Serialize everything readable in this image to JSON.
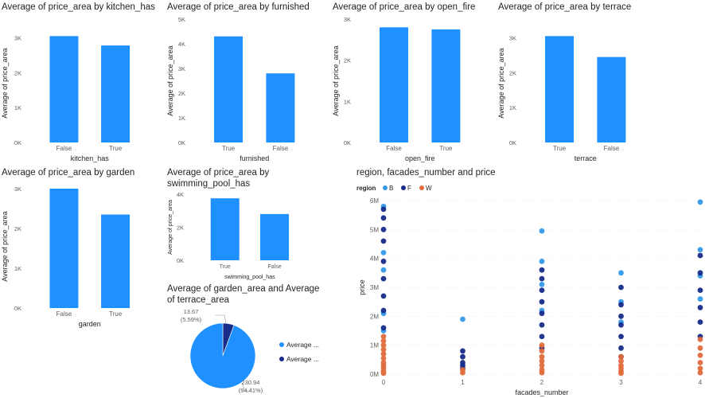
{
  "colors": {
    "bar": "#1e90ff",
    "axis_text": "#605e5c",
    "grid": "#e6e6e6",
    "B": "#3599e8",
    "F": "#162b8a",
    "W": "#e06c3c",
    "pie_main": "#1e90ff",
    "pie_small": "#1a2c8a"
  },
  "chart_data": [
    {
      "type": "bar",
      "title": "Average of price_area by kitchen_has",
      "xlabel": "kitchen_has",
      "ylabel": "Average of price_area",
      "categories": [
        "False",
        "True"
      ],
      "values": [
        3050,
        2780
      ],
      "ylim": [
        0,
        3400
      ],
      "yticks": [
        0,
        1000,
        2000,
        3000
      ],
      "yticklabels": [
        "0K",
        "1K",
        "2K",
        "3K"
      ]
    },
    {
      "type": "bar",
      "title": "Average of price_area by furnished",
      "xlabel": "furnished",
      "ylabel": "Average of price_area",
      "categories": [
        "True",
        "False"
      ],
      "values": [
        4300,
        2800
      ],
      "ylim": [
        0,
        5000
      ],
      "yticks": [
        0,
        1000,
        2000,
        3000,
        4000,
        5000
      ],
      "yticklabels": [
        "0K",
        "1K",
        "2K",
        "3K",
        "4K",
        "5K"
      ]
    },
    {
      "type": "bar",
      "title": "Average of price_area by open_fire",
      "xlabel": "open_fire",
      "ylabel": "Average of price_area",
      "categories": [
        "False",
        "True"
      ],
      "values": [
        2800,
        2750
      ],
      "ylim": [
        0,
        3000
      ],
      "yticks": [
        0,
        1000,
        2000,
        3000
      ],
      "yticklabels": [
        "0K",
        "1K",
        "2K",
        "3K"
      ]
    },
    {
      "type": "bar",
      "title": "Average of price_area by terrace",
      "xlabel": "terrace",
      "ylabel": "Average of price_area",
      "categories": [
        "True",
        "False"
      ],
      "values": [
        3050,
        2450
      ],
      "ylim": [
        0,
        3400
      ],
      "yticks": [
        0,
        1000,
        2000,
        3000
      ],
      "yticklabels": [
        "0K",
        "1K",
        "2K",
        "3K"
      ]
    },
    {
      "type": "bar",
      "title": "Average of price_area by garden",
      "xlabel": "garden",
      "ylabel": "Average of price_area",
      "categories": [
        "False",
        "True"
      ],
      "values": [
        3000,
        2350
      ],
      "ylim": [
        0,
        3100
      ],
      "yticks": [
        0,
        1000,
        2000,
        3000
      ],
      "yticklabels": [
        "0K",
        "1K",
        "2K",
        "3K"
      ]
    },
    {
      "type": "bar",
      "title": "Average of price_area by swimming_pool_has",
      "xlabel": "swimming_pool_has",
      "ylabel": "Average of price_area",
      "categories": [
        "True",
        "False"
      ],
      "values": [
        3750,
        2800
      ],
      "ylim": [
        0,
        4000
      ],
      "yticks": [
        0,
        2000,
        4000
      ],
      "yticklabels": [
        "0K",
        "2K",
        "4K"
      ]
    },
    {
      "type": "pie",
      "title": "Average of garden_area and Average of terrace_area",
      "slices": [
        {
          "label": "Average ...",
          "value": 230.94,
          "value_label": "230.94",
          "pct_label": "(94.41%)"
        },
        {
          "label": "Average ...",
          "value": 13.67,
          "value_label": "13.67",
          "pct_label": "(5.59%)"
        }
      ]
    },
    {
      "type": "scatter",
      "title": "region, facades_number and price",
      "xlabel": "facades_number",
      "ylabel": "price",
      "legend_title": "region",
      "legend": [
        "B",
        "F",
        "W"
      ],
      "legend_position": "top-left",
      "xlim": [
        0,
        4
      ],
      "xticks": [
        0,
        1,
        2,
        3,
        4
      ],
      "xticklabels": [
        "0",
        "1",
        "2",
        "3",
        "4"
      ],
      "ylim": [
        0,
        6000000
      ],
      "yticks": [
        0,
        1000000,
        2000000,
        3000000,
        4000000,
        5000000,
        6000000
      ],
      "yticklabels": [
        "0M",
        "1M",
        "2M",
        "3M",
        "4M",
        "5M",
        "6M"
      ],
      "series": [
        {
          "name": "B",
          "x": [
            0,
            0,
            0,
            0,
            0,
            1,
            2,
            2,
            2,
            2,
            3,
            3,
            3,
            4,
            4,
            4,
            4
          ],
          "y": [
            5800000,
            4200000,
            3600000,
            2100000,
            1500000,
            1900000,
            4950000,
            3900000,
            3100000,
            2200000,
            3500000,
            2500000,
            1800000,
            5950000,
            4300000,
            3400000,
            2600000
          ]
        },
        {
          "name": "F",
          "x": [
            0,
            0,
            0,
            0,
            0,
            0,
            0,
            0,
            0,
            1,
            1,
            1,
            1,
            1,
            2,
            2,
            2,
            2,
            2,
            2,
            2,
            2,
            3,
            3,
            3,
            3,
            3,
            3,
            3,
            4,
            4,
            4,
            4,
            4,
            4
          ],
          "y": [
            5700000,
            5400000,
            5000000,
            4600000,
            3900000,
            3300000,
            2700000,
            2200000,
            1600000,
            800000,
            600000,
            400000,
            300000,
            200000,
            3600000,
            3300000,
            2900000,
            2500000,
            2100000,
            1700000,
            1300000,
            900000,
            3000000,
            2400000,
            2000000,
            1700000,
            1300000,
            900000,
            600000,
            4100000,
            3500000,
            2900000,
            2300000,
            1800000,
            1300000
          ]
        },
        {
          "name": "W",
          "x": [
            0,
            0,
            0,
            0,
            0,
            0,
            0,
            0,
            0,
            0,
            0,
            1,
            1,
            2,
            2,
            2,
            2,
            2,
            2,
            2,
            3,
            3,
            3,
            3,
            3,
            3,
            4,
            4,
            4,
            4,
            4,
            4
          ],
          "y": [
            1300000,
            1150000,
            1000000,
            850000,
            700000,
            550000,
            400000,
            300000,
            200000,
            100000,
            30000,
            150000,
            50000,
            1000000,
            800000,
            600000,
            450000,
            300000,
            150000,
            50000,
            600000,
            450000,
            300000,
            200000,
            100000,
            30000,
            1200000,
            900000,
            650000,
            400000,
            200000,
            50000
          ]
        }
      ]
    }
  ]
}
